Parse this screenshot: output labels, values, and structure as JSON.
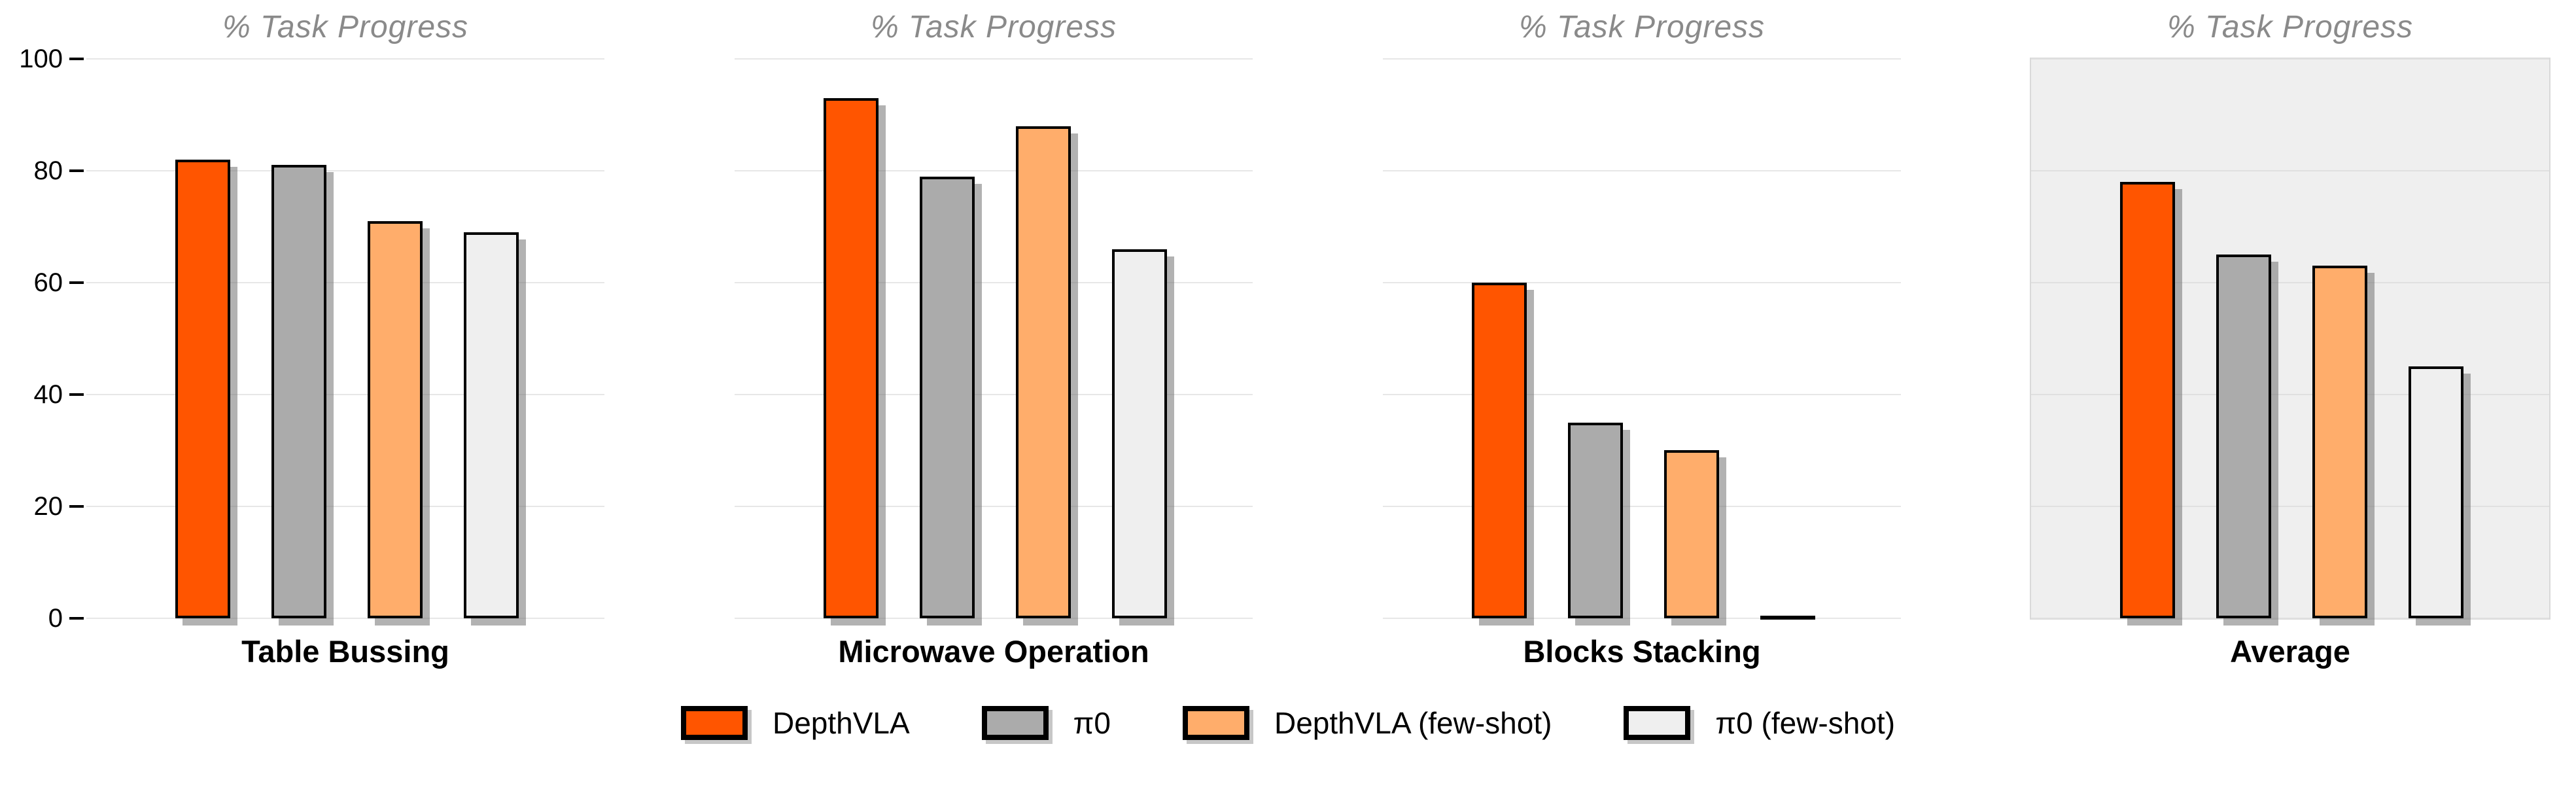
{
  "figure": {
    "panel_title": "% Task Progress",
    "highlighted_panel": "Average"
  },
  "chart_data": {
    "type": "bar",
    "layout": "4 side-by-side facet panels sharing one y-axis, legend centered below",
    "title": "% Task Progress",
    "categories": [
      "Table Bussing",
      "Microwave Operation",
      "Blocks Stacking",
      "Average"
    ],
    "series": [
      {
        "name": "DepthVLA",
        "color": "#FF5500",
        "values": [
          82,
          93,
          60,
          78
        ]
      },
      {
        "name": "π0",
        "color": "#ABABAB",
        "values": [
          81,
          79,
          35,
          65
        ]
      },
      {
        "name": "DepthVLA (few-shot)",
        "color": "#FFAD6B",
        "values": [
          71,
          88,
          30,
          63
        ]
      },
      {
        "name": "π0 (few-shot)",
        "color": "#EFEFEF",
        "values": [
          69,
          66,
          0,
          45
        ]
      }
    ],
    "ylim": [
      0,
      100
    ],
    "yticks": [
      0,
      20,
      40,
      60,
      80,
      100
    ],
    "grid": "horizontal gridlines on",
    "legend_position": "bottom center",
    "highlighted_panel_background": "#EFEFEF"
  },
  "legend": {
    "items": [
      "DepthVLA",
      "π0",
      "DepthVLA (few-shot)",
      "π0 (few-shot)"
    ]
  }
}
